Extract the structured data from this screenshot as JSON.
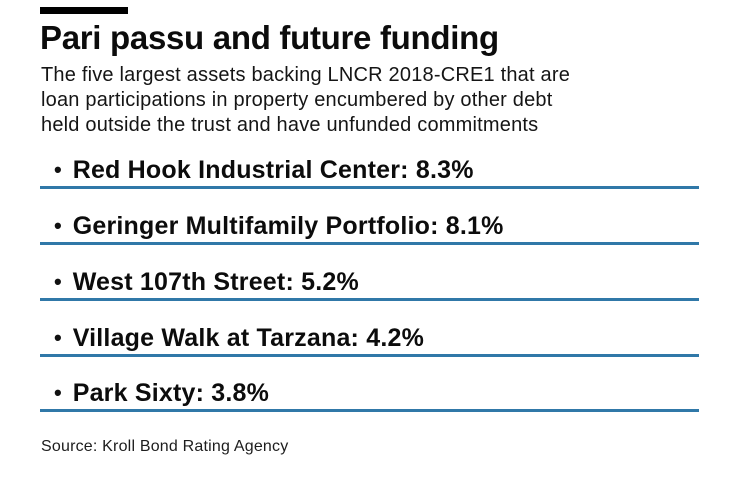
{
  "page": {
    "background_color": "#ffffff",
    "accent_blue": "#3078a8",
    "top_bar_color": "#000000"
  },
  "header": {
    "title": "Pari passu and future funding",
    "subtitle_lines": [
      "The five largest assets backing LNCR 2018-CRE1 that are",
      "loan participations in property encumbered by other debt",
      "held outside the trust and have unfunded commitments"
    ]
  },
  "list": {
    "bullet": "•",
    "items": [
      {
        "label": "Red Hook Industrial Center: 8.3%"
      },
      {
        "label": "Geringer Multifamily Portfolio: 8.1%"
      },
      {
        "label": "West 107th Street: 5.2%"
      },
      {
        "label": "Village Walk at Tarzana: 4.2%"
      },
      {
        "label": "Park Sixty: 3.8%"
      }
    ]
  },
  "footer": {
    "source": "Source: Kroll Bond Rating Agency"
  },
  "chart_data": {
    "type": "table",
    "title": "Pari passu and future funding",
    "subtitle": "The five largest assets backing LNCR 2018-CRE1 that are loan participations in property encumbered by other debt held outside the trust and have unfunded commitments",
    "categories": [
      "Red Hook Industrial Center",
      "Geringer Multifamily Portfolio",
      "West 107th Street",
      "Village Walk at Tarzana",
      "Park Sixty"
    ],
    "values": [
      8.3,
      8.1,
      5.2,
      4.2,
      3.8
    ],
    "unit": "%",
    "legend": "none",
    "layout": "vertical bulleted list, each item underlined with a blue rule",
    "source": "Source: Kroll Bond Rating Agency"
  }
}
